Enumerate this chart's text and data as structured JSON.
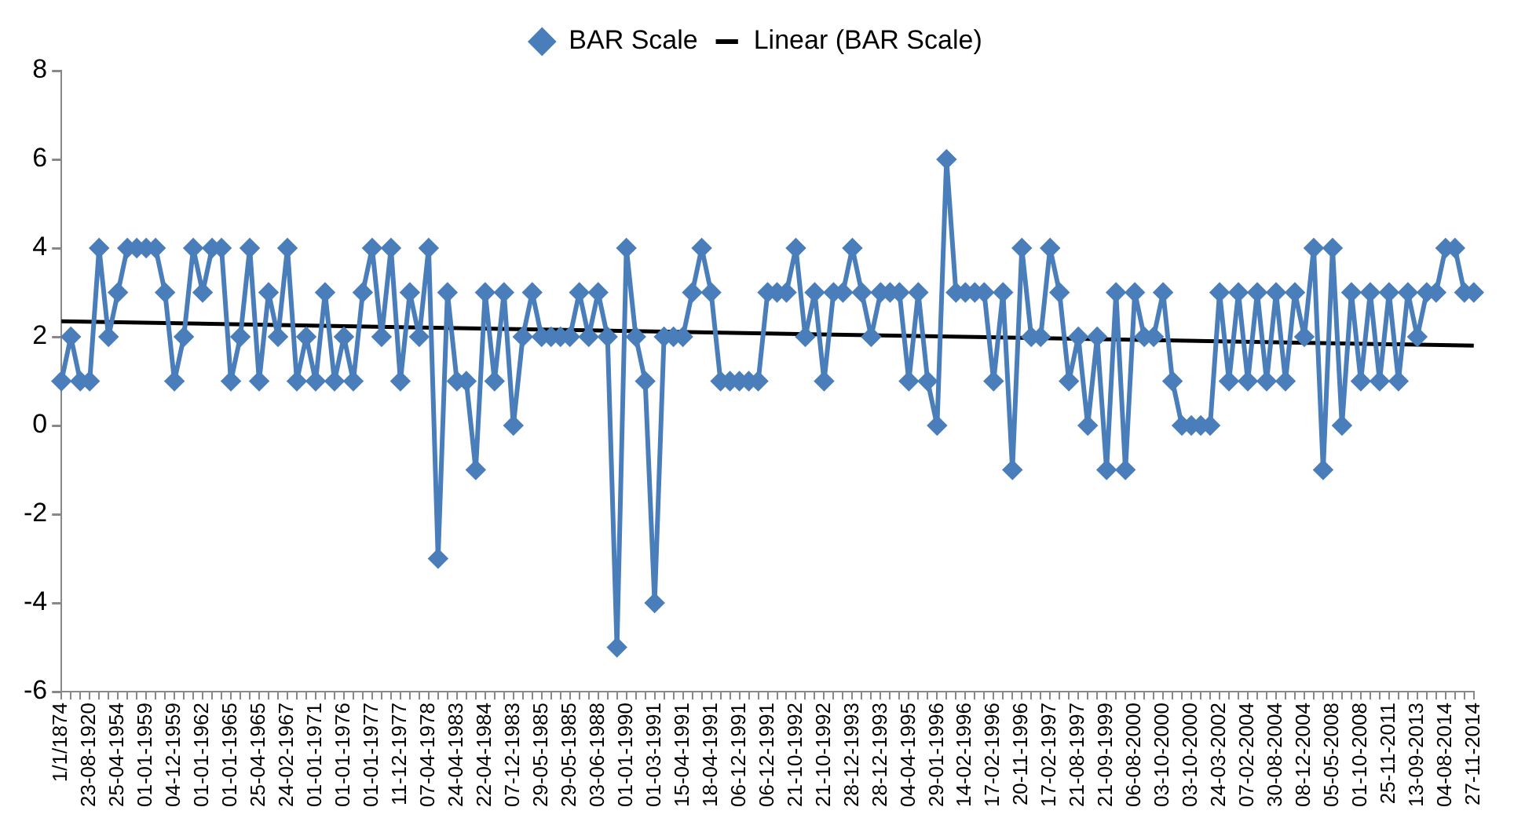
{
  "chart_data": {
    "type": "line",
    "legend": "top",
    "grid": false,
    "marker": "diamond",
    "ylim": [
      -6,
      8
    ],
    "yticks": [
      -6,
      -4,
      -2,
      0,
      2,
      4,
      6,
      8
    ],
    "categories": [
      "1/1/1874",
      null,
      null,
      "23-08-1920",
      null,
      null,
      "25-04-1954",
      null,
      null,
      "01-01-1959",
      null,
      null,
      "04-12-1959",
      null,
      null,
      "01-01-1962",
      null,
      null,
      "01-01-1965",
      null,
      null,
      "25-04-1965",
      null,
      null,
      "24-02-1967",
      null,
      null,
      "01-01-1971",
      null,
      null,
      "01-01-1976",
      null,
      null,
      "01-01-1977",
      null,
      null,
      "11-12-1977",
      null,
      null,
      "07-04-1978",
      null,
      null,
      "24-04-1983",
      null,
      null,
      "22-04-1984",
      null,
      null,
      "07-12-1983",
      null,
      null,
      "29-05-1985",
      null,
      null,
      "29-05-1985",
      null,
      null,
      "03-06-1988",
      null,
      null,
      "01-01-1990",
      null,
      null,
      "01-03-1991",
      null,
      null,
      "15-04-1991",
      null,
      null,
      "18-04-1991",
      null,
      null,
      "06-12-1991",
      null,
      null,
      "06-12-1991",
      null,
      null,
      "21-10-1992",
      null,
      null,
      "21-10-1992",
      null,
      null,
      "28-12-1993",
      null,
      null,
      "28-12-1993",
      null,
      null,
      "04-04-1995",
      null,
      null,
      "29-01-1996",
      null,
      null,
      "14-02-1996",
      null,
      null,
      "17-02-1996",
      null,
      null,
      "20-11-1996",
      null,
      null,
      "17-02-1997",
      null,
      null,
      "21-08-1997",
      null,
      null,
      "21-09-1999",
      null,
      null,
      "06-08-2000",
      null,
      null,
      "03-10-2000",
      null,
      null,
      "03-10-2000",
      null,
      null,
      "24-03-2002",
      null,
      null,
      "07-02-2004",
      null,
      null,
      "30-08-2004",
      null,
      null,
      "08-12-2004",
      null,
      null,
      "05-05-2008",
      null,
      null,
      "01-10-2008",
      null,
      null,
      "25-11-2011",
      null,
      null,
      "13-09-2013",
      null,
      null,
      "04-08-2014",
      null,
      null,
      "27-11-2014"
    ],
    "series": [
      {
        "name": "BAR Scale",
        "color": "#4a7ebb",
        "values": [
          1,
          2,
          1,
          1,
          4,
          2,
          3,
          4,
          4,
          4,
          4,
          3,
          1,
          2,
          4,
          3,
          4,
          4,
          1,
          2,
          4,
          1,
          3,
          2,
          4,
          1,
          2,
          1,
          3,
          1,
          2,
          1,
          3,
          4,
          2,
          4,
          1,
          3,
          2,
          4,
          -3,
          3,
          1,
          1,
          -1,
          3,
          1,
          3,
          0,
          2,
          3,
          2,
          2,
          2,
          2,
          3,
          2,
          3,
          2,
          -5,
          4,
          2,
          1,
          -4,
          2,
          2,
          2,
          3,
          4,
          3,
          1,
          1,
          1,
          1,
          1,
          3,
          3,
          3,
          4,
          2,
          3,
          1,
          3,
          3,
          4,
          3,
          2,
          3,
          3,
          3,
          1,
          3,
          1,
          0,
          6,
          3,
          3,
          3,
          3,
          1,
          3,
          -1,
          4,
          2,
          2,
          4,
          3,
          1,
          2,
          0,
          2,
          -1,
          3,
          -1,
          3,
          2,
          2,
          3,
          1,
          0,
          0,
          0,
          0,
          3,
          1,
          3,
          1,
          3,
          1,
          3,
          1,
          3,
          2,
          4,
          -1,
          4,
          0,
          3,
          1,
          3,
          1,
          3,
          1,
          3,
          2,
          3,
          3,
          4,
          4,
          3,
          3
        ]
      },
      {
        "name": "Linear (BAR Scale)",
        "color": "#000000",
        "marker": "none",
        "type": "line",
        "x": [
          "1/1/1874",
          "27-11-2014"
        ],
        "values": [
          2.35,
          1.8
        ]
      }
    ]
  }
}
